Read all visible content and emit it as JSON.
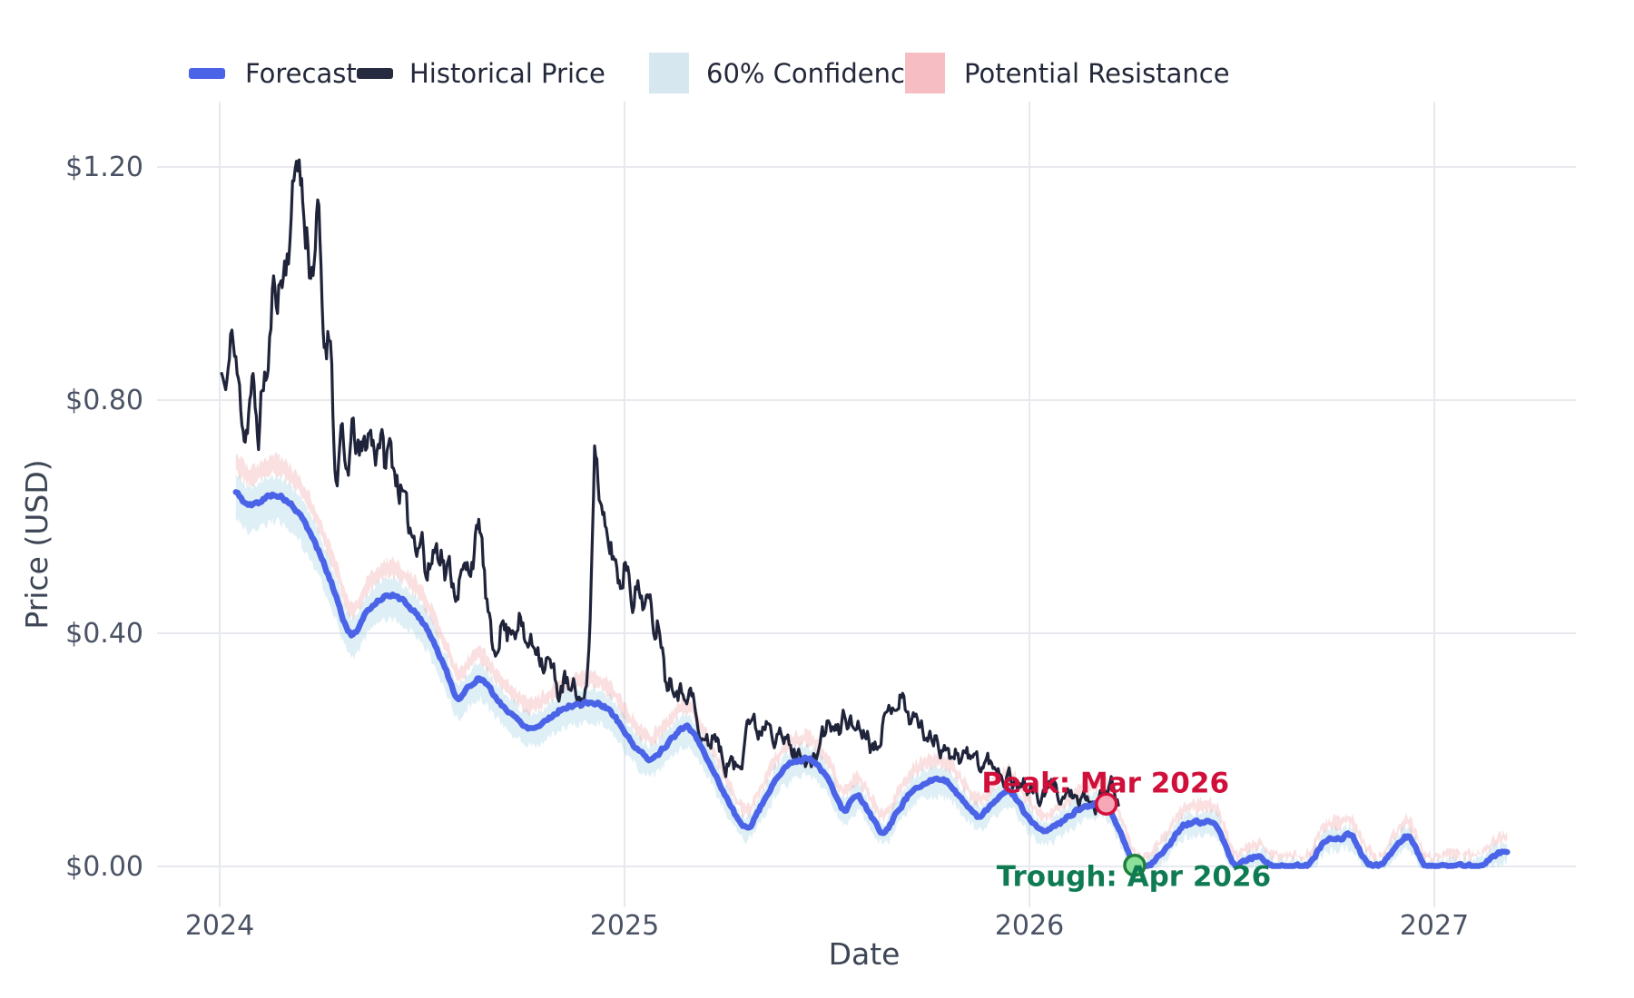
{
  "page": {
    "background": "#ffffff"
  },
  "legend": {
    "items": [
      {
        "label": "Forecast",
        "swatch": "line",
        "color": "#4A63E7"
      },
      {
        "label": "Historical Price",
        "swatch": "line",
        "color": "#262B40"
      },
      {
        "label": "60% Confidence",
        "swatch": "rect",
        "color": "#D6E7EF"
      },
      {
        "label": "Potential Resistance",
        "swatch": "rect",
        "color": "#F6BEC2"
      }
    ]
  },
  "axes": {
    "x": {
      "title": "Date",
      "ticks": [
        {
          "t": 2024,
          "label": "2024"
        },
        {
          "t": 2025,
          "label": "2025"
        },
        {
          "t": 2026,
          "label": "2026"
        },
        {
          "t": 2027,
          "label": "2027"
        }
      ]
    },
    "y": {
      "title": "Price (USD)",
      "ticks": [
        {
          "v": 0.0,
          "label": "$0.00"
        },
        {
          "v": 0.4,
          "label": "$0.40"
        },
        {
          "v": 0.8,
          "label": "$0.80"
        },
        {
          "v": 1.2,
          "label": "$1.20"
        }
      ]
    }
  },
  "annotations": {
    "peak": {
      "label": "Peak: Mar 2026",
      "t": 2026.19,
      "v": 0.107,
      "text_color": "#D0103A",
      "marker_fill": "#F6A8B8",
      "marker_stroke": "#D40F3B"
    },
    "trough": {
      "label": "Trough: Apr 2026",
      "t": 2026.26,
      "v": 0.002,
      "text_color": "#0F7B52",
      "marker_fill": "#8BE09A",
      "marker_stroke": "#1E7E3C"
    }
  },
  "chart_data": {
    "type": "line",
    "title": "",
    "xlabel": "Date",
    "ylabel": "Price (USD)",
    "x_range": [
      2023.845,
      2027.35
    ],
    "y_range": [
      -0.07,
      1.312
    ],
    "grid": true,
    "legend_position": "top",
    "grid_color": "#E7E9EF",
    "series": [
      {
        "name": "Historical Price",
        "color": "#20243A",
        "style": "noisy",
        "width": 3.2,
        "points": [
          [
            2024.005,
            0.845
          ],
          [
            2024.018,
            0.81
          ],
          [
            2024.027,
            0.92
          ],
          [
            2024.04,
            0.855
          ],
          [
            2024.058,
            0.77
          ],
          [
            2024.063,
            0.742
          ],
          [
            2024.08,
            0.822
          ],
          [
            2024.085,
            0.8
          ],
          [
            2024.096,
            0.744
          ],
          [
            2024.108,
            0.837
          ],
          [
            2024.12,
            0.848
          ],
          [
            2024.13,
            0.973
          ],
          [
            2024.146,
            0.993
          ],
          [
            2024.157,
            1.015
          ],
          [
            2024.17,
            1.066
          ],
          [
            2024.18,
            1.139
          ],
          [
            2024.193,
            1.234
          ],
          [
            2024.2,
            1.175
          ],
          [
            2024.205,
            1.149
          ],
          [
            2024.212,
            1.071
          ],
          [
            2024.218,
            1.082
          ],
          [
            2024.225,
            1.015
          ],
          [
            2024.245,
            1.108
          ],
          [
            2024.253,
            0.946
          ],
          [
            2024.258,
            0.9
          ],
          [
            2024.27,
            0.91
          ],
          [
            2024.277,
            0.89
          ],
          [
            2024.282,
            0.728
          ],
          [
            2024.287,
            0.661
          ],
          [
            2024.3,
            0.734
          ],
          [
            2024.312,
            0.672
          ],
          [
            2024.33,
            0.744
          ],
          [
            2024.345,
            0.703
          ],
          [
            2024.37,
            0.744
          ],
          [
            2024.385,
            0.713
          ],
          [
            2024.395,
            0.74
          ],
          [
            2024.41,
            0.693
          ],
          [
            2024.42,
            0.719
          ],
          [
            2024.435,
            0.672
          ],
          [
            2024.447,
            0.643
          ],
          [
            2024.47,
            0.584
          ],
          [
            2024.48,
            0.568
          ],
          [
            2024.49,
            0.56
          ],
          [
            2024.5,
            0.568
          ],
          [
            2024.51,
            0.495
          ],
          [
            2024.53,
            0.545
          ],
          [
            2024.55,
            0.537
          ],
          [
            2024.556,
            0.501
          ],
          [
            2024.57,
            0.511
          ],
          [
            2024.58,
            0.475
          ],
          [
            2024.6,
            0.5
          ],
          [
            2024.62,
            0.52
          ],
          [
            2024.64,
            0.573
          ],
          [
            2024.645,
            0.574
          ],
          [
            2024.657,
            0.467
          ],
          [
            2024.663,
            0.433
          ],
          [
            2024.675,
            0.37
          ],
          [
            2024.7,
            0.417
          ],
          [
            2024.71,
            0.397
          ],
          [
            2024.72,
            0.417
          ],
          [
            2024.73,
            0.408
          ],
          [
            2024.74,
            0.428
          ],
          [
            2024.755,
            0.381
          ],
          [
            2024.765,
            0.386
          ],
          [
            2024.775,
            0.377
          ],
          [
            2024.786,
            0.378
          ],
          [
            2024.8,
            0.347
          ],
          [
            2024.81,
            0.353
          ],
          [
            2024.825,
            0.33
          ],
          [
            2024.835,
            0.299
          ],
          [
            2024.855,
            0.319
          ],
          [
            2024.865,
            0.296
          ],
          [
            2024.877,
            0.303
          ],
          [
            2024.888,
            0.283
          ],
          [
            2024.9,
            0.293
          ],
          [
            2024.906,
            0.31
          ],
          [
            2024.912,
            0.36
          ],
          [
            2024.918,
            0.52
          ],
          [
            2024.926,
            0.714
          ],
          [
            2024.94,
            0.62
          ],
          [
            2024.955,
            0.56
          ],
          [
            2024.975,
            0.53
          ],
          [
            2024.99,
            0.485
          ],
          [
            2025.005,
            0.526
          ],
          [
            2025.02,
            0.464
          ],
          [
            2025.03,
            0.475
          ],
          [
            2025.045,
            0.459
          ],
          [
            2025.06,
            0.45
          ],
          [
            2025.075,
            0.412
          ],
          [
            2025.087,
            0.417
          ],
          [
            2025.1,
            0.33
          ],
          [
            2025.12,
            0.32
          ],
          [
            2025.135,
            0.3
          ],
          [
            2025.16,
            0.3
          ],
          [
            2025.175,
            0.27
          ],
          [
            2025.185,
            0.215
          ],
          [
            2025.2,
            0.22
          ],
          [
            2025.21,
            0.205
          ],
          [
            2025.22,
            0.23
          ],
          [
            2025.24,
            0.19
          ],
          [
            2025.25,
            0.17
          ],
          [
            2025.26,
            0.185
          ],
          [
            2025.27,
            0.17
          ],
          [
            2025.29,
            0.185
          ],
          [
            2025.3,
            0.25
          ],
          [
            2025.32,
            0.245
          ],
          [
            2025.33,
            0.23
          ],
          [
            2025.35,
            0.25
          ],
          [
            2025.36,
            0.255
          ],
          [
            2025.37,
            0.225
          ],
          [
            2025.38,
            0.235
          ],
          [
            2025.39,
            0.21
          ],
          [
            2025.4,
            0.22
          ],
          [
            2025.41,
            0.2
          ],
          [
            2025.43,
            0.19
          ],
          [
            2025.44,
            0.2
          ],
          [
            2025.45,
            0.18
          ],
          [
            2025.47,
            0.18
          ],
          [
            2025.48,
            0.21
          ],
          [
            2025.5,
            0.24
          ],
          [
            2025.51,
            0.241
          ],
          [
            2025.53,
            0.23
          ],
          [
            2025.54,
            0.26
          ],
          [
            2025.55,
            0.252
          ],
          [
            2025.57,
            0.238
          ],
          [
            2025.58,
            0.246
          ],
          [
            2025.59,
            0.226
          ],
          [
            2025.6,
            0.237
          ],
          [
            2025.61,
            0.205
          ],
          [
            2025.63,
            0.225
          ],
          [
            2025.64,
            0.245
          ],
          [
            2025.65,
            0.26
          ],
          [
            2025.665,
            0.285
          ],
          [
            2025.672,
            0.277
          ],
          [
            2025.68,
            0.29
          ],
          [
            2025.69,
            0.28
          ],
          [
            2025.7,
            0.261
          ],
          [
            2025.71,
            0.252
          ],
          [
            2025.72,
            0.257
          ],
          [
            2025.73,
            0.241
          ],
          [
            2025.74,
            0.23
          ],
          [
            2025.76,
            0.215
          ],
          [
            2025.77,
            0.226
          ],
          [
            2025.78,
            0.205
          ],
          [
            2025.79,
            0.21
          ],
          [
            2025.8,
            0.19
          ],
          [
            2025.82,
            0.199
          ],
          [
            2025.83,
            0.184
          ],
          [
            2025.84,
            0.195
          ],
          [
            2025.86,
            0.182
          ],
          [
            2025.87,
            0.19
          ],
          [
            2025.88,
            0.168
          ],
          [
            2025.9,
            0.184
          ],
          [
            2025.91,
            0.163
          ],
          [
            2025.92,
            0.174
          ],
          [
            2025.94,
            0.148
          ],
          [
            2025.95,
            0.159
          ],
          [
            2025.97,
            0.137
          ],
          [
            2025.98,
            0.148
          ],
          [
            2026.0,
            0.128
          ],
          [
            2026.015,
            0.135
          ],
          [
            2026.025,
            0.112
          ],
          [
            2026.04,
            0.125
          ],
          [
            2026.06,
            0.14
          ],
          [
            2026.08,
            0.115
          ],
          [
            2026.1,
            0.13
          ],
          [
            2026.12,
            0.103
          ],
          [
            2026.14,
            0.12
          ],
          [
            2026.16,
            0.1
          ],
          [
            2026.175,
            0.118
          ],
          [
            2026.19,
            0.125
          ],
          [
            2026.205,
            0.142
          ],
          [
            2026.22,
            0.115
          ]
        ]
      },
      {
        "name": "Forecast",
        "color": "#4A63E7",
        "style": "smooth",
        "width": 6.5,
        "points": [
          [
            2024.04,
            0.641
          ],
          [
            2024.07,
            0.62
          ],
          [
            2024.1,
            0.626
          ],
          [
            2024.13,
            0.638
          ],
          [
            2024.16,
            0.63
          ],
          [
            2024.2,
            0.6
          ],
          [
            2024.24,
            0.548
          ],
          [
            2024.28,
            0.478
          ],
          [
            2024.325,
            0.398
          ],
          [
            2024.37,
            0.442
          ],
          [
            2024.41,
            0.464
          ],
          [
            2024.44,
            0.461
          ],
          [
            2024.48,
            0.438
          ],
          [
            2024.52,
            0.398
          ],
          [
            2024.56,
            0.335
          ],
          [
            2024.59,
            0.289
          ],
          [
            2024.62,
            0.312
          ],
          [
            2024.645,
            0.322
          ],
          [
            2024.68,
            0.291
          ],
          [
            2024.72,
            0.261
          ],
          [
            2024.77,
            0.238
          ],
          [
            2024.81,
            0.253
          ],
          [
            2024.85,
            0.272
          ],
          [
            2024.89,
            0.278
          ],
          [
            2024.93,
            0.28
          ],
          [
            2024.97,
            0.262
          ],
          [
            2025.01,
            0.22
          ],
          [
            2025.06,
            0.185
          ],
          [
            2025.1,
            0.206
          ],
          [
            2025.155,
            0.238
          ],
          [
            2025.21,
            0.178
          ],
          [
            2025.26,
            0.108
          ],
          [
            2025.3,
            0.067
          ],
          [
            2025.34,
            0.108
          ],
          [
            2025.38,
            0.156
          ],
          [
            2025.425,
            0.182
          ],
          [
            2025.47,
            0.179
          ],
          [
            2025.51,
            0.14
          ],
          [
            2025.54,
            0.097
          ],
          [
            2025.575,
            0.121
          ],
          [
            2025.61,
            0.085
          ],
          [
            2025.64,
            0.059
          ],
          [
            2025.68,
            0.101
          ],
          [
            2025.72,
            0.136
          ],
          [
            2025.755,
            0.146
          ],
          [
            2025.8,
            0.143
          ],
          [
            2025.84,
            0.11
          ],
          [
            2025.875,
            0.086
          ],
          [
            2025.915,
            0.111
          ],
          [
            2025.95,
            0.129
          ],
          [
            2025.99,
            0.091
          ],
          [
            2026.035,
            0.059
          ],
          [
            2026.08,
            0.076
          ],
          [
            2026.12,
            0.098
          ],
          [
            2026.155,
            0.106
          ],
          [
            2026.19,
            0.107
          ],
          [
            2026.225,
            0.058
          ],
          [
            2026.26,
            0.002
          ],
          [
            2026.3,
            0.004
          ],
          [
            2026.34,
            0.034
          ],
          [
            2026.38,
            0.07
          ],
          [
            2026.43,
            0.075
          ],
          [
            2026.465,
            0.068
          ],
          [
            2026.505,
            0.004
          ],
          [
            2026.545,
            0.014
          ],
          [
            2026.575,
            0.015
          ],
          [
            2026.6,
            0.002
          ],
          [
            2026.65,
            0.001
          ],
          [
            2026.69,
            0.003
          ],
          [
            2026.73,
            0.044
          ],
          [
            2026.765,
            0.048
          ],
          [
            2026.795,
            0.051
          ],
          [
            2026.83,
            0.012
          ],
          [
            2026.865,
            0.001
          ],
          [
            2026.9,
            0.028
          ],
          [
            2026.935,
            0.05
          ],
          [
            2026.975,
            0.004
          ],
          [
            2027.02,
            0.001
          ],
          [
            2027.07,
            0.001
          ],
          [
            2027.115,
            0.004
          ],
          [
            2027.15,
            0.02
          ],
          [
            2027.18,
            0.028
          ]
        ]
      }
    ],
    "bands": [
      {
        "name": "60% Confidence",
        "base": "Forecast",
        "fill": "rgba(173,214,231,0.40)",
        "top": [
          0.01,
          0.028
        ],
        "bottom": [
          -0.012,
          -0.042
        ]
      },
      {
        "name": "Potential Resistance",
        "base": "Forecast",
        "fill": "rgba(240,158,160,0.32)",
        "top": [
          0.022,
          0.055
        ],
        "bottom": [
          0.012,
          0.03
        ]
      }
    ]
  }
}
